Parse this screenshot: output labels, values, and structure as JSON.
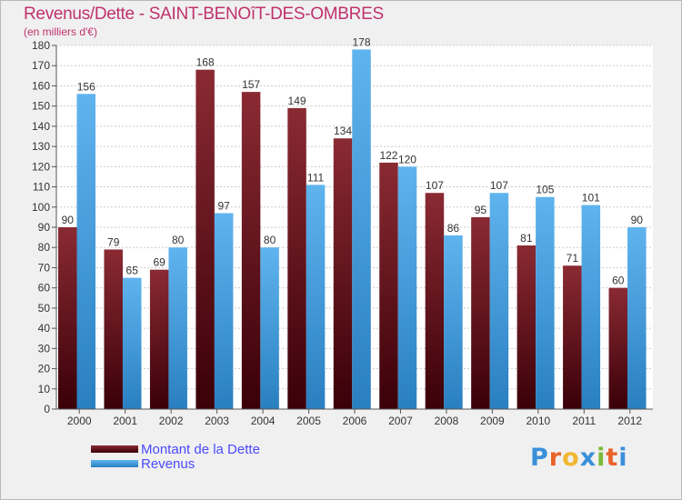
{
  "title": "Revenus/Dette - SAINT-BENOîT-DES-OMBRES",
  "subtitle": "(en milliers d'€)",
  "logo": "Proxiti",
  "colors": {
    "debt_top": "#8a2a33",
    "debt_bottom": "#3a0008",
    "revenue_top": "#5fb4ee",
    "revenue_bottom": "#2a7fc0",
    "title": "#c0326d",
    "legend_text": "#4a4aff"
  },
  "chart_data": {
    "type": "bar",
    "title": "Revenus/Dette - SAINT-BENOîT-DES-OMBRES",
    "subtitle": "(en milliers d'€)",
    "categories": [
      "2000",
      "2001",
      "2002",
      "2003",
      "2004",
      "2005",
      "2006",
      "2007",
      "2008",
      "2009",
      "2010",
      "2011",
      "2012"
    ],
    "series": [
      {
        "name": "Montant de la Dette",
        "values": [
          90,
          79,
          69,
          168,
          157,
          149,
          134,
          122,
          107,
          95,
          81,
          71,
          60
        ]
      },
      {
        "name": "Revenus",
        "values": [
          156,
          65,
          80,
          97,
          80,
          111,
          178,
          120,
          86,
          107,
          105,
          101,
          90
        ]
      }
    ],
    "yticks": [
      0,
      10,
      20,
      30,
      40,
      50,
      60,
      70,
      80,
      90,
      100,
      110,
      120,
      130,
      140,
      150,
      160,
      170,
      180
    ],
    "ylim": [
      0,
      180
    ],
    "grid": true,
    "legend": "bottom-left"
  }
}
